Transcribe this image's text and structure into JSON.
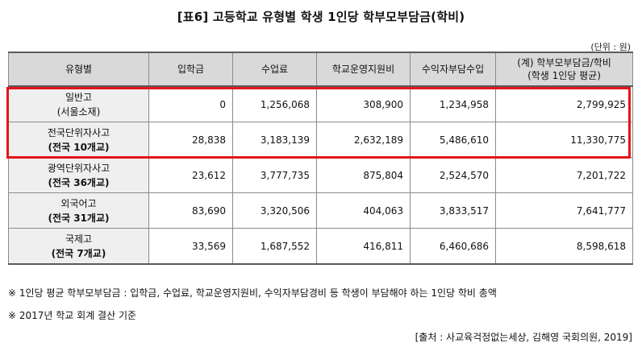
{
  "title": "[표6] 고등학교 유형별 학생 1인당 학부모부담금(학비)",
  "unit": "(단위 : 원)",
  "table": {
    "headers": [
      {
        "lines": [
          "유형별"
        ]
      },
      {
        "lines": [
          "입학금"
        ]
      },
      {
        "lines": [
          "수업료"
        ]
      },
      {
        "lines": [
          "학교운영지원비"
        ]
      },
      {
        "lines": [
          "수익자부담수입"
        ]
      },
      {
        "lines": [
          "(계) 학부모부담금/학비",
          "(학생 1인당 평균)"
        ]
      }
    ],
    "rows": [
      {
        "name": [
          "일반고",
          "(서울소재)"
        ],
        "values": [
          "0",
          "1,256,068",
          "308,900",
          "1,234,958",
          "2,799,925"
        ],
        "bold_sub": false
      },
      {
        "name": [
          "전국단위자사고",
          "(전국 10개교)"
        ],
        "values": [
          "28,838",
          "3,183,139",
          "2,632,189",
          "5,486,610",
          "11,330,775"
        ],
        "bold_sub": true
      },
      {
        "name": [
          "광역단위자사고",
          "(전국 36개교)"
        ],
        "values": [
          "23,612",
          "3,777,735",
          "875,804",
          "2,524,570",
          "7,201,722"
        ],
        "bold_sub": true
      },
      {
        "name": [
          "외국어고",
          "(전국 31개교)"
        ],
        "values": [
          "83,690",
          "3,320,506",
          "404,063",
          "3,833,517",
          "7,641,777"
        ],
        "bold_sub": true
      },
      {
        "name": [
          "국제고",
          "(전국 7개교)"
        ],
        "values": [
          "33,569",
          "1,687,552",
          "416,811",
          "6,460,686",
          "8,598,618"
        ],
        "bold_sub": true
      }
    ]
  },
  "highlight_color": "#e3141b",
  "notes": [
    "※ 1인당 평균 학부모부담금 : 입학금, 수업료, 학교운영지원비, 수익자부담경비 등 학생이 부담해야 하는 1인당 학비 총액",
    "※ 2017년 학교 회계 결산 기준"
  ],
  "source": "[출처 : 사교육걱정없는세상, 김해영 국회의원, 2019]"
}
